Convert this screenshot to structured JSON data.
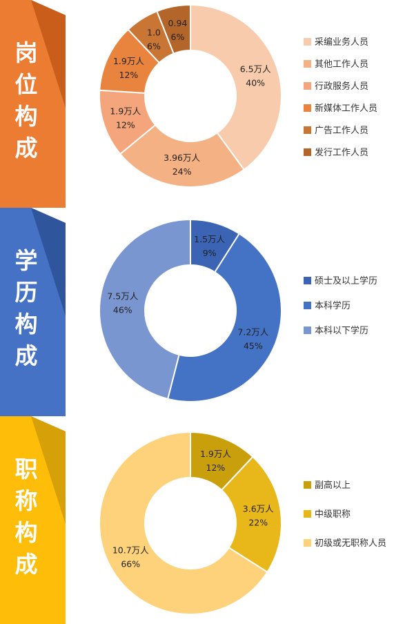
{
  "sections": [
    {
      "title": [
        "岗",
        "位",
        "构",
        "成"
      ],
      "color": "#ec7c31",
      "shade": "#c85e1a"
    },
    {
      "title": [
        "学",
        "历",
        "构",
        "成"
      ],
      "color": "#4572c4",
      "shade": "#2f569d"
    },
    {
      "title": [
        "职",
        "称",
        "构",
        "成"
      ],
      "color": "#fdbd09",
      "shade": "#d6a008"
    }
  ],
  "chart_data": [
    {
      "type": "pie",
      "donut": true,
      "legend_position": "right",
      "slices": [
        {
          "name": "采编业务人员",
          "value": 40,
          "label": "6.5万人",
          "pct": "40%",
          "color": "#f8cbad"
        },
        {
          "name": "其他工作人员",
          "value": 24,
          "label": "3.96万人",
          "pct": "24%",
          "color": "#f4b183"
        },
        {
          "name": "行政服务人员",
          "value": 12,
          "label": "1.9万人",
          "pct": "12%",
          "color": "#f4a57c"
        },
        {
          "name": "新媒体工作人员",
          "value": 12,
          "label": "1.9万人",
          "pct": "12%",
          "color": "#e8843e"
        },
        {
          "name": "广告工作人员",
          "value": 6,
          "label": "1.0",
          "pct": "6%",
          "color": "#c97534"
        },
        {
          "name": "发行工作人员",
          "value": 6,
          "label": "0.94",
          "pct": "6%",
          "color": "#b4652a"
        }
      ],
      "legend_order": [
        0,
        1,
        2,
        3,
        4,
        5
      ]
    },
    {
      "type": "pie",
      "donut": true,
      "legend_position": "right",
      "slices": [
        {
          "name": "硕士及以上学历",
          "value": 9,
          "label": "1.5万人",
          "pct": "9%",
          "color": "#3b64b4"
        },
        {
          "name": "本科学历",
          "value": 45,
          "label": "7.2万人",
          "pct": "45%",
          "color": "#4472c4"
        },
        {
          "name": "本科以下学历",
          "value": 46,
          "label": "7.5万人",
          "pct": "46%",
          "color": "#7a96d0"
        }
      ],
      "legend_order": [
        0,
        1,
        2
      ]
    },
    {
      "type": "pie",
      "donut": true,
      "legend_position": "right",
      "slices": [
        {
          "name": "副高以上",
          "value": 12,
          "label": "1.9万人",
          "pct": "12%",
          "color": "#c9a00c"
        },
        {
          "name": "中级职称",
          "value": 22,
          "label": "3.6万人",
          "pct": "22%",
          "color": "#e8b71a"
        },
        {
          "name": "初级或无职称人员",
          "value": 66,
          "label": "10.7万人",
          "pct": "66%",
          "color": "#fdd27a"
        }
      ],
      "legend_order": [
        0,
        1,
        2
      ]
    }
  ]
}
